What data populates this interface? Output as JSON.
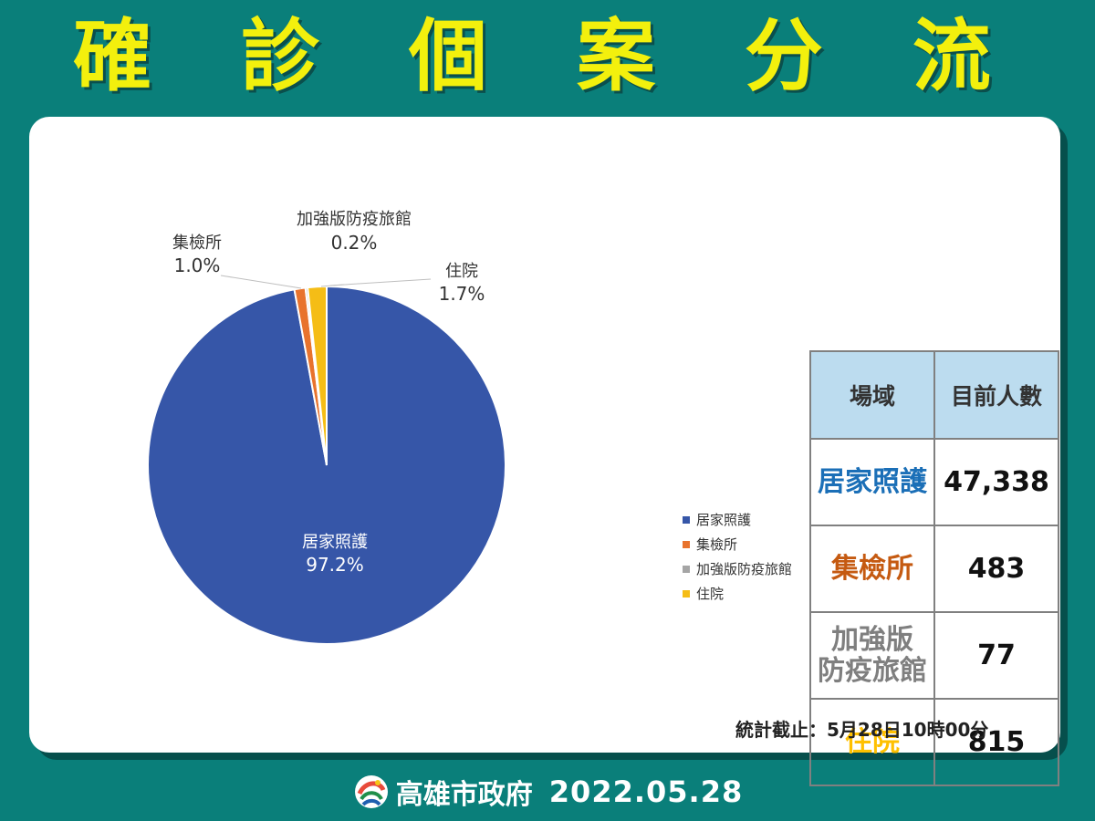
{
  "title": "確 診 個 案 分 流",
  "chart_data": {
    "type": "pie",
    "categories": [
      "居家照護",
      "集檢所",
      "加強版防疫旅館",
      "住院"
    ],
    "values": [
      97.2,
      1.0,
      0.2,
      1.7
    ],
    "value_labels": [
      "97.2%",
      "1.0%",
      "0.2%",
      "1.7%"
    ],
    "colors": [
      "#3656a8",
      "#e8732d",
      "#a5a5a5",
      "#f5bd16"
    ],
    "legend": "right"
  },
  "table": {
    "headers": [
      "場域",
      "目前人數"
    ],
    "rows": [
      {
        "place": "居家照護",
        "place_lines": [
          "居家照護"
        ],
        "count": "47,338",
        "color": "#1b6fb7"
      },
      {
        "place": "集檢所",
        "place_lines": [
          "集檢所"
        ],
        "count": "483",
        "color": "#c55a11"
      },
      {
        "place": "加強版防疫旅館",
        "place_lines": [
          "加強版",
          "防疫旅館"
        ],
        "count": "77",
        "color": "#7f7f7f"
      },
      {
        "place": "住院",
        "place_lines": [
          "住院"
        ],
        "count": "815",
        "color": "#ffc000"
      }
    ]
  },
  "footnote": "統計截止：5月28日10時00分",
  "footer": {
    "org": "高雄市政府",
    "date": "2022.05.28"
  }
}
